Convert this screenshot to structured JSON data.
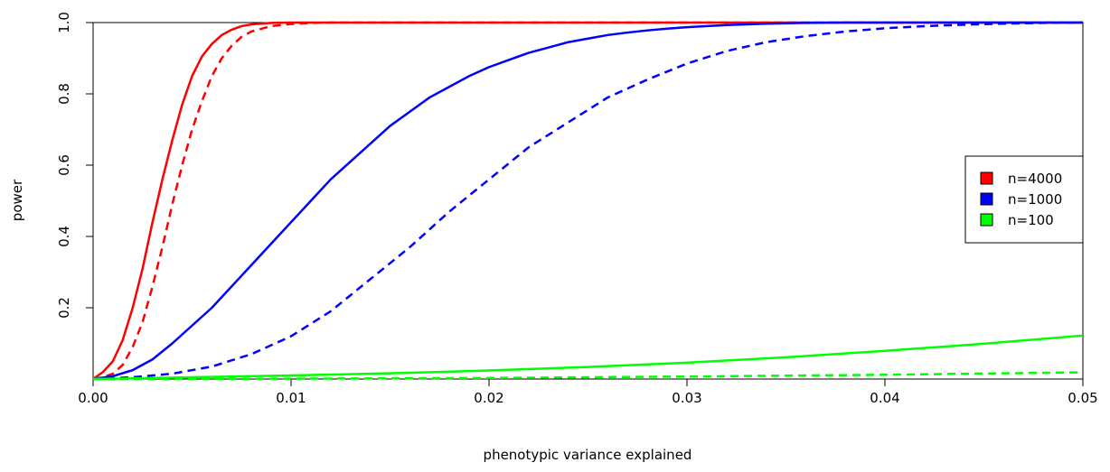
{
  "chart_data": {
    "type": "line",
    "title": "",
    "xlabel": "phenotypic variance explained",
    "ylabel": "power",
    "xlim": [
      0,
      0.05
    ],
    "ylim": [
      0,
      1
    ],
    "x_ticks": [
      "0.00",
      "0.01",
      "0.02",
      "0.03",
      "0.04",
      "0.05"
    ],
    "y_ticks": [
      "0.2",
      "0.4",
      "0.6",
      "0.8",
      "1.0"
    ],
    "grid": false,
    "legend_position": "right",
    "legend": [
      {
        "label": "n=4000",
        "color": "#ff0000"
      },
      {
        "label": "n=1000",
        "color": "#0000ff"
      },
      {
        "label": "n=100",
        "color": "#00ff00"
      }
    ],
    "series": [
      {
        "color": "#ff0000",
        "style": "solid",
        "x": [
          0,
          0.0005,
          0.001,
          0.0015,
          0.002,
          0.0025,
          0.003,
          0.0035,
          0.004,
          0.0045,
          0.005,
          0.0055,
          0.006,
          0.0065,
          0.007,
          0.0075,
          0.008,
          0.009,
          0.01,
          0.011,
          0.012,
          0.05
        ],
        "values": [
          0,
          0.02,
          0.05,
          0.11,
          0.2,
          0.31,
          0.44,
          0.56,
          0.67,
          0.77,
          0.85,
          0.905,
          0.94,
          0.965,
          0.98,
          0.99,
          0.995,
          0.999,
          1,
          1,
          1,
          1
        ]
      },
      {
        "color": "#ff0000",
        "style": "dashed",
        "x": [
          0,
          0.0005,
          0.001,
          0.0015,
          0.002,
          0.0025,
          0.003,
          0.0035,
          0.004,
          0.0045,
          0.005,
          0.0055,
          0.006,
          0.0065,
          0.007,
          0.0075,
          0.008,
          0.009,
          0.01,
          0.011,
          0.012,
          0.013,
          0.05
        ],
        "values": [
          0,
          0.005,
          0.015,
          0.04,
          0.09,
          0.16,
          0.26,
          0.37,
          0.49,
          0.6,
          0.7,
          0.78,
          0.85,
          0.9,
          0.935,
          0.96,
          0.975,
          0.99,
          0.996,
          0.999,
          1,
          1,
          1
        ]
      },
      {
        "color": "#0000ff",
        "style": "solid",
        "x": [
          0,
          0.001,
          0.002,
          0.003,
          0.004,
          0.005,
          0.006,
          0.007,
          0.008,
          0.009,
          0.01,
          0.011,
          0.012,
          0.013,
          0.014,
          0.015,
          0.016,
          0.017,
          0.018,
          0.019,
          0.02,
          0.021,
          0.022,
          0.023,
          0.024,
          0.025,
          0.026,
          0.027,
          0.028,
          0.029,
          0.03,
          0.032,
          0.034,
          0.036,
          0.038,
          0.04,
          0.05
        ],
        "values": [
          0,
          0.008,
          0.025,
          0.055,
          0.1,
          0.15,
          0.2,
          0.26,
          0.32,
          0.38,
          0.44,
          0.5,
          0.56,
          0.61,
          0.66,
          0.71,
          0.75,
          0.79,
          0.82,
          0.85,
          0.875,
          0.895,
          0.915,
          0.93,
          0.945,
          0.955,
          0.965,
          0.972,
          0.978,
          0.983,
          0.987,
          0.993,
          0.997,
          0.999,
          1,
          1,
          1
        ]
      },
      {
        "color": "#0000ff",
        "style": "dashed",
        "x": [
          0,
          0.002,
          0.004,
          0.006,
          0.008,
          0.01,
          0.012,
          0.014,
          0.016,
          0.018,
          0.02,
          0.022,
          0.024,
          0.026,
          0.028,
          0.03,
          0.032,
          0.034,
          0.036,
          0.038,
          0.04,
          0.042,
          0.044,
          0.046,
          0.048,
          0.05
        ],
        "values": [
          0,
          0.005,
          0.015,
          0.035,
          0.07,
          0.12,
          0.19,
          0.28,
          0.37,
          0.47,
          0.56,
          0.65,
          0.72,
          0.79,
          0.84,
          0.885,
          0.92,
          0.945,
          0.962,
          0.975,
          0.984,
          0.99,
          0.994,
          0.997,
          0.999,
          1
        ]
      },
      {
        "color": "#00ff00",
        "style": "solid",
        "x": [
          0,
          0.005,
          0.01,
          0.015,
          0.02,
          0.025,
          0.03,
          0.035,
          0.04,
          0.045,
          0.05
        ],
        "values": [
          0,
          0.005,
          0.01,
          0.016,
          0.024,
          0.034,
          0.046,
          0.061,
          0.079,
          0.099,
          0.122
        ]
      },
      {
        "color": "#00ff00",
        "style": "dashed",
        "x": [
          0,
          0.01,
          0.02,
          0.03,
          0.04,
          0.05
        ],
        "values": [
          0,
          0.001,
          0.003,
          0.007,
          0.012,
          0.019
        ]
      }
    ]
  }
}
